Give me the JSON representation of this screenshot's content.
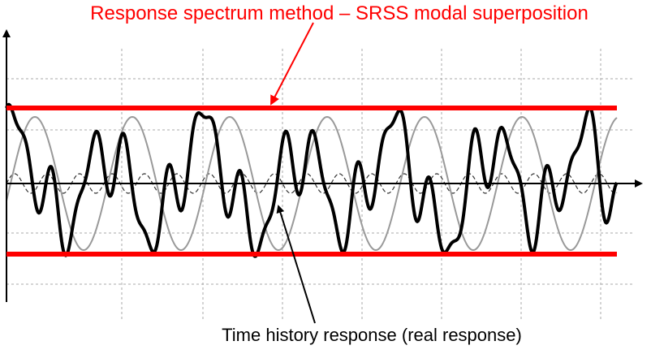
{
  "header": {
    "title": "Response spectrum method – SRSS modal superposition"
  },
  "annotations": {
    "time_history": "Time history response (real response)"
  }
}
